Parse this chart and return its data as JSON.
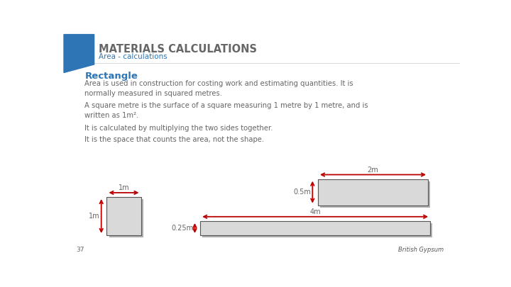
{
  "title": "MATERIALS CALCULATIONS",
  "subtitle": "Area - calculations",
  "title_color": "#666666",
  "subtitle_color": "#2e75b6",
  "bg_color": "#ffffff",
  "blue_shape_color": "#2e75b6",
  "rect_fill": "#d9d9d9",
  "rect_edge": "#555555",
  "shadow_color": "#b0b0b0",
  "arrow_color": "#bb0000",
  "section_heading": "Rectangle",
  "section_heading_color": "#2e75b6",
  "para1": "Area is used in construction for costing work and estimating quantities. It is\nnormally measured in squared metres.",
  "para2": "A square metre is the surface of a square measuring 1 metre by 1 metre, and is\nwritten as 1m².",
  "para3": "It is calculated by multiplying the two sides together.",
  "para4": "It is the space that counts the area, not the shape.",
  "text_color": "#666666",
  "page_num": "37",
  "label_1m_top": "1m",
  "label_1m_side": "1m",
  "label_2m": "2m",
  "label_05m": "0.5m",
  "label_4m": "4m",
  "label_025m": "0.25m"
}
